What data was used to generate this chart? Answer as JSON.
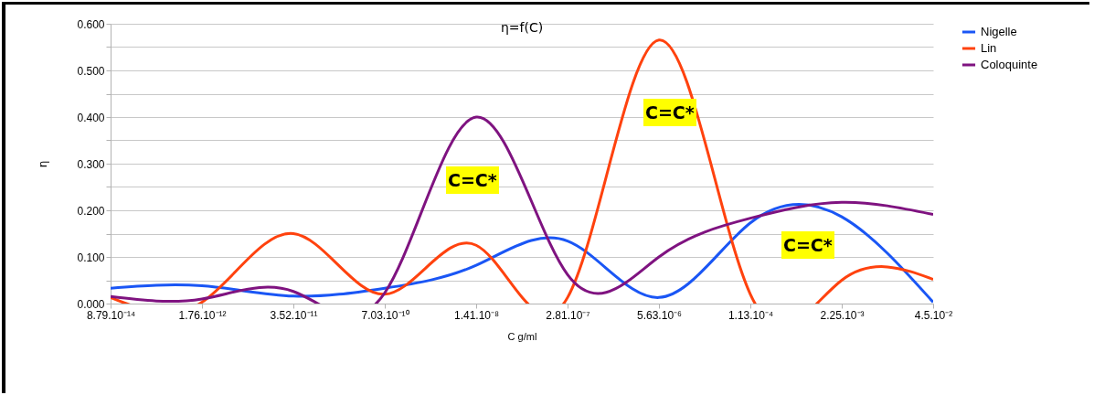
{
  "chart_data": {
    "type": "line",
    "title": "η=f(C)",
    "xlabel": "C g/ml",
    "ylabel": "η",
    "categories": [
      "8.79.10⁻¹⁴",
      "1.76.10⁻¹²",
      "3.52.10⁻¹¹",
      "7.03.10⁻¹⁰",
      "1.41.10⁻⁸",
      "2.81.10⁻⁷",
      "5.63.10⁻⁶",
      "1.13.10⁻⁴",
      "2.25.10⁻³",
      "4.5.10⁻²"
    ],
    "series": [
      {
        "name": "Nigelle",
        "color": "#1a56f5",
        "values": [
          0.033,
          0.038,
          0.016,
          0.033,
          0.082,
          0.134,
          0.013,
          0.173,
          0.186,
          0.003
        ]
      },
      {
        "name": "Lin",
        "color": "#ff420e",
        "values": [
          0.013,
          0.003,
          0.15,
          0.02,
          0.125,
          0.013,
          0.565,
          0.02,
          0.05,
          0.052
        ]
      },
      {
        "name": "Coloquinte",
        "color": "#7f1380",
        "values": [
          0.015,
          0.01,
          0.026,
          0.023,
          0.4,
          0.062,
          0.1,
          0.183,
          0.217,
          0.191
        ]
      }
    ],
    "annotations": [
      "C=C*",
      "C=C*",
      "C=C*"
    ],
    "ylim": [
      0,
      0.6
    ],
    "yticks": [
      {
        "value": 0,
        "label": "0.000"
      },
      {
        "value": 0.05,
        "label": null
      },
      {
        "value": 0.1,
        "label": "0.100"
      },
      {
        "value": 0.15,
        "label": null
      },
      {
        "value": 0.2,
        "label": "0.200"
      },
      {
        "value": 0.25,
        "label": null
      },
      {
        "value": 0.3,
        "label": "0.300"
      },
      {
        "value": 0.35,
        "label": null
      },
      {
        "value": 0.4,
        "label": "0.400"
      },
      {
        "value": 0.45,
        "label": null
      },
      {
        "value": 0.5,
        "label": "0.500"
      },
      {
        "value": 0.55,
        "label": null
      },
      {
        "value": 0.6,
        "label": "0.600"
      }
    ],
    "grid": "y",
    "legend": "right",
    "marker": "none",
    "line_style": "solid"
  }
}
